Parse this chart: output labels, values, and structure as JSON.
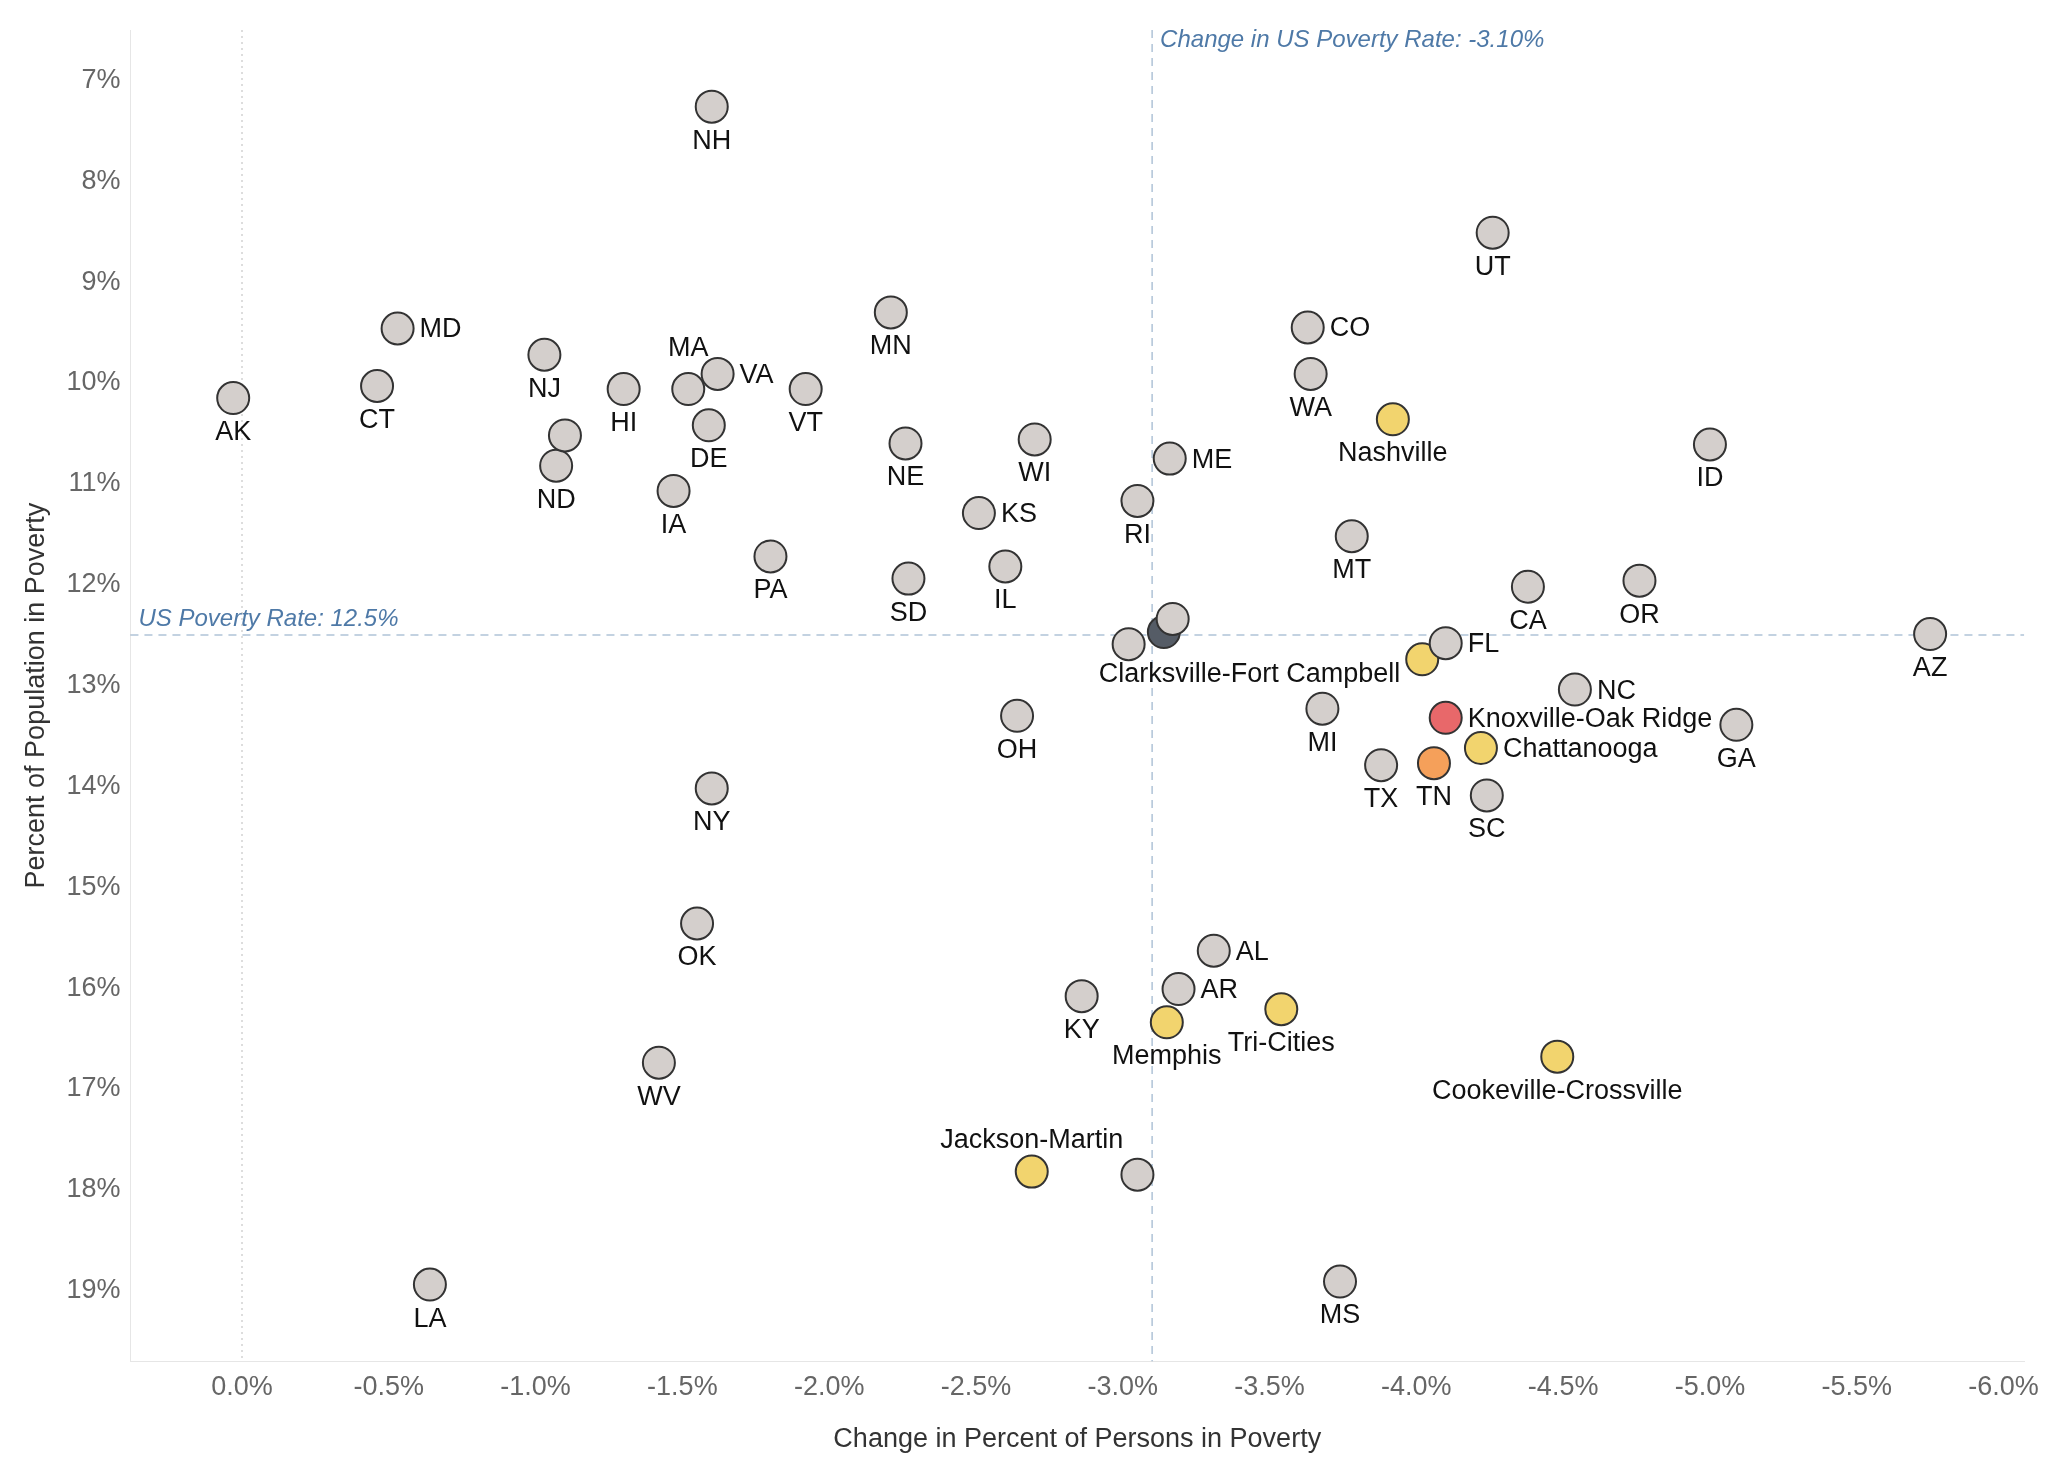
{
  "chart_data": {
    "type": "scatter",
    "xlabel": "Change in Percent of Persons in Poverty",
    "ylabel": "Percent of Population in Poverty",
    "xlim": [
      0.38,
      -6.07
    ],
    "ylim": [
      19.7,
      6.5
    ],
    "xticks": [
      {
        "value": 0,
        "label": "0.0%"
      },
      {
        "value": -0.5,
        "label": "-0.5%"
      },
      {
        "value": -1,
        "label": "-1.0%"
      },
      {
        "value": -1.5,
        "label": "-1.5%"
      },
      {
        "value": -2,
        "label": "-2.0%"
      },
      {
        "value": -2.5,
        "label": "-2.5%"
      },
      {
        "value": -3,
        "label": "-3.0%"
      },
      {
        "value": -3.5,
        "label": "-3.5%"
      },
      {
        "value": -4,
        "label": "-4.0%"
      },
      {
        "value": -4.5,
        "label": "-4.5%"
      },
      {
        "value": -5,
        "label": "-5.0%"
      },
      {
        "value": -5.5,
        "label": "-5.5%"
      },
      {
        "value": -6,
        "label": "-6.0%"
      }
    ],
    "yticks": [
      {
        "value": 7,
        "label": "7%"
      },
      {
        "value": 8,
        "label": "8%"
      },
      {
        "value": 9,
        "label": "9%"
      },
      {
        "value": 10,
        "label": "10%"
      },
      {
        "value": 11,
        "label": "11%"
      },
      {
        "value": 12,
        "label": "12%"
      },
      {
        "value": 13,
        "label": "13%"
      },
      {
        "value": 14,
        "label": "14%"
      },
      {
        "value": 15,
        "label": "15%"
      },
      {
        "value": 16,
        "label": "16%"
      },
      {
        "value": 17,
        "label": "17%"
      },
      {
        "value": 18,
        "label": "18%"
      },
      {
        "value": 19,
        "label": "19%"
      }
    ],
    "grid": false,
    "legend": false,
    "marker": "circle",
    "series": [
      {
        "color": "#d4cfcc",
        "x": [
          -1.6,
          -4.26,
          -0.53,
          -3.63,
          -2.21,
          -1.03,
          -0.46,
          0.03,
          -1.3,
          -1.52,
          -1.62,
          -1.92,
          -1.59,
          -3.64,
          -5.0,
          -1.07,
          -1.1,
          -1.47,
          -1.8,
          -2.26,
          -2.27,
          -2.7,
          -2.51,
          -2.6,
          -3.05,
          -3.16,
          -3.78,
          -4.38,
          -4.76,
          -4.1,
          -5.75,
          -5.09,
          -4.54,
          -3.68,
          -3.88,
          -4.24,
          -2.64,
          -1.6,
          -1.55,
          -1.42,
          -2.86,
          -3.19,
          -3.31,
          -3.05,
          -3.74,
          -0.64,
          -3.02,
          -3.17
        ],
        "values": [
          7.26,
          8.51,
          9.46,
          9.45,
          9.3,
          9.72,
          10.03,
          10.15,
          10.06,
          10.06,
          9.91,
          10.06,
          10.42,
          9.91,
          10.61,
          10.82,
          10.52,
          11.07,
          11.72,
          10.6,
          11.94,
          10.56,
          11.29,
          11.82,
          11.17,
          10.75,
          11.52,
          12.02,
          11.96,
          12.58,
          12.49,
          13.39,
          13.04,
          13.23,
          13.79,
          14.09,
          13.3,
          14.02,
          15.36,
          16.74,
          16.08,
          16.01,
          15.63,
          17.85,
          18.91,
          18.94,
          12.59,
          12.34
        ]
      },
      {
        "color": "#f2d46e",
        "x": [
          -3.92,
          -4.02,
          -4.22,
          -3.15,
          -3.54,
          -4.48,
          -2.69
        ],
        "values": [
          10.36,
          12.74,
          13.62,
          16.34,
          16.21,
          16.68,
          17.82
        ]
      },
      {
        "color": "#f5a05a",
        "x": [
          -4.06
        ],
        "values": [
          13.77
        ]
      },
      {
        "color": "#e8686a",
        "x": [
          -4.1
        ],
        "values": [
          13.32
        ]
      },
      {
        "color": "#555c66",
        "x": [
          -3.14
        ],
        "values": [
          12.47
        ]
      }
    ],
    "ref_lines": [
      {
        "axis": "x",
        "value": -3.1,
        "label": "Change in US Poverty Rate: -3.10%",
        "color": "#4e79a7",
        "line_style": "dashed"
      },
      {
        "axis": "y",
        "value": 12.5,
        "label": "US Poverty Rate: 12.5%",
        "color": "#4e79a7",
        "line_style": "dashed"
      },
      {
        "axis": "x",
        "value": 0,
        "color": "#999999",
        "line_style": "dotted"
      }
    ],
    "annotations": [
      {
        "text": "NH",
        "x": -1.6,
        "y": 7.26
      },
      {
        "text": "UT",
        "x": -4.26,
        "y": 8.51
      },
      {
        "text": "MD",
        "x": -0.53,
        "y": 9.46
      },
      {
        "text": "CO",
        "x": -3.63,
        "y": 9.45
      },
      {
        "text": "MN",
        "x": -2.21,
        "y": 9.3
      },
      {
        "text": "NJ",
        "x": -1.03,
        "y": 9.72
      },
      {
        "text": "CT",
        "x": -0.46,
        "y": 10.03
      },
      {
        "text": "AK",
        "x": 0.03,
        "y": 10.15
      },
      {
        "text": "HI",
        "x": -1.3,
        "y": 10.06
      },
      {
        "text": "MA",
        "x": -1.52,
        "y": 10.06
      },
      {
        "text": "VA",
        "x": -1.62,
        "y": 9.91
      },
      {
        "text": "VT",
        "x": -1.92,
        "y": 10.06
      },
      {
        "text": "DE",
        "x": -1.59,
        "y": 10.42
      },
      {
        "text": "WA",
        "x": -3.64,
        "y": 9.91
      },
      {
        "text": "ID",
        "x": -5.0,
        "y": 10.61
      },
      {
        "text": "ND",
        "x": -1.07,
        "y": 10.82
      },
      {
        "text": "IA",
        "x": -1.47,
        "y": 11.07
      },
      {
        "text": "PA",
        "x": -1.8,
        "y": 11.72
      },
      {
        "text": "NE",
        "x": -2.26,
        "y": 10.6
      },
      {
        "text": "SD",
        "x": -2.27,
        "y": 11.94
      },
      {
        "text": "WI",
        "x": -2.7,
        "y": 10.56
      },
      {
        "text": "KS",
        "x": -2.51,
        "y": 11.29
      },
      {
        "text": "IL",
        "x": -2.6,
        "y": 11.82
      },
      {
        "text": "RI",
        "x": -3.05,
        "y": 11.17
      },
      {
        "text": "ME",
        "x": -3.16,
        "y": 10.75
      },
      {
        "text": "MT",
        "x": -3.78,
        "y": 11.52
      },
      {
        "text": "CA",
        "x": -4.38,
        "y": 12.02
      },
      {
        "text": "OR",
        "x": -4.76,
        "y": 11.96
      },
      {
        "text": "FL",
        "x": -4.1,
        "y": 12.58
      },
      {
        "text": "AZ",
        "x": -5.75,
        "y": 12.49
      },
      {
        "text": "GA",
        "x": -5.09,
        "y": 13.39
      },
      {
        "text": "NC",
        "x": -4.54,
        "y": 13.04
      },
      {
        "text": "MI",
        "x": -3.68,
        "y": 13.23
      },
      {
        "text": "TX",
        "x": -3.88,
        "y": 13.79
      },
      {
        "text": "SC",
        "x": -4.24,
        "y": 14.09
      },
      {
        "text": "OH",
        "x": -2.64,
        "y": 13.3
      },
      {
        "text": "NY",
        "x": -1.6,
        "y": 14.02
      },
      {
        "text": "OK",
        "x": -1.55,
        "y": 15.36
      },
      {
        "text": "WV",
        "x": -1.42,
        "y": 16.74
      },
      {
        "text": "KY",
        "x": -2.86,
        "y": 16.08
      },
      {
        "text": "AR",
        "x": -3.19,
        "y": 16.01
      },
      {
        "text": "AL",
        "x": -3.31,
        "y": 15.63
      },
      {
        "text": "MS",
        "x": -3.74,
        "y": 18.91
      },
      {
        "text": "LA",
        "x": -0.64,
        "y": 18.94
      },
      {
        "text": "Nashville",
        "x": -3.92,
        "y": 10.36
      },
      {
        "text": "Clarksville-Fort Campbell",
        "x": -4.02,
        "y": 12.74
      },
      {
        "text": "Chattanooga",
        "x": -4.22,
        "y": 13.62
      },
      {
        "text": "Memphis",
        "x": -3.15,
        "y": 16.34
      },
      {
        "text": "Tri-Cities",
        "x": -3.54,
        "y": 16.21
      },
      {
        "text": "Cookeville-Crossville",
        "x": -4.48,
        "y": 16.68
      },
      {
        "text": "Jackson-Martin",
        "x": -2.69,
        "y": 17.82
      },
      {
        "text": "TN",
        "x": -4.06,
        "y": 13.77
      },
      {
        "text": "Knoxville-Oak Ridge",
        "x": -4.1,
        "y": 13.32
      }
    ]
  }
}
